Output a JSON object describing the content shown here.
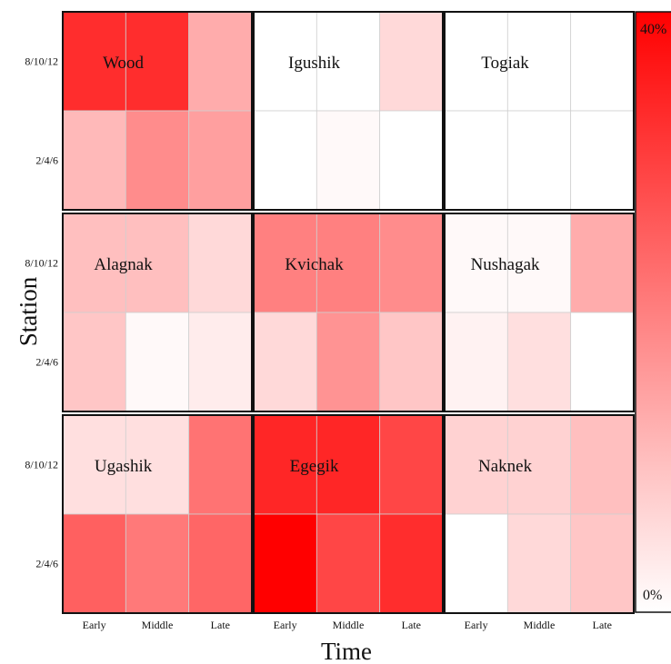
{
  "chart_data": {
    "type": "heatmap",
    "xlabel": "Time",
    "ylabel": "Station",
    "x_ticks": [
      "Early",
      "Middle",
      "Late"
    ],
    "y_ticks": [
      "8/10/12",
      "2/4/6"
    ],
    "colorbar": {
      "min_label": "0%",
      "max_label": "40%",
      "low_color": "#ffffff",
      "high_color": "#ff0000",
      "min": 0,
      "max": 40
    },
    "panels": [
      {
        "name": "Wood",
        "values": {
          "8/10/12": [
            33,
            33,
            13
          ],
          "2/4/6": [
            11,
            18,
            15
          ]
        }
      },
      {
        "name": "Igushik",
        "values": {
          "8/10/12": [
            0,
            0,
            6
          ],
          "2/4/6": [
            0,
            1,
            0
          ]
        }
      },
      {
        "name": "Togiak",
        "values": {
          "8/10/12": [
            0,
            0,
            0
          ],
          "2/4/6": [
            0,
            0,
            0
          ]
        }
      },
      {
        "name": "Alagnak",
        "values": {
          "8/10/12": [
            10,
            10,
            6
          ],
          "2/4/6": [
            9,
            1,
            3
          ]
        }
      },
      {
        "name": "Kvichak",
        "values": {
          "8/10/12": [
            20,
            20,
            18
          ],
          "2/4/6": [
            6,
            17,
            9
          ]
        }
      },
      {
        "name": "Nushagak",
        "values": {
          "8/10/12": [
            1,
            1,
            13
          ],
          "2/4/6": [
            2,
            5,
            0
          ]
        }
      },
      {
        "name": "Ugashik",
        "values": {
          "8/10/12": [
            5,
            5,
            22
          ],
          "2/4/6": [
            25,
            21,
            24
          ]
        }
      },
      {
        "name": "Egegik",
        "values": {
          "8/10/12": [
            34,
            34,
            29
          ],
          "2/4/6": [
            40,
            29,
            33
          ]
        }
      },
      {
        "name": "Naknek",
        "values": {
          "8/10/12": [
            7,
            7,
            10
          ],
          "2/4/6": [
            0,
            6,
            9
          ]
        }
      }
    ]
  }
}
